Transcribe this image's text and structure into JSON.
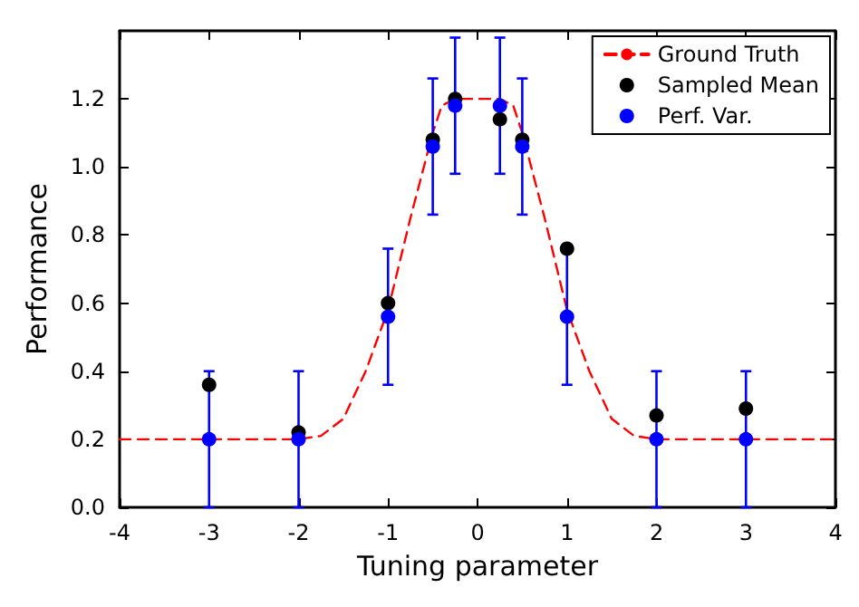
{
  "chart_data": {
    "type": "scatter",
    "xlabel": "Tuning parameter",
    "ylabel": "Performance",
    "xlim": [
      -4,
      4
    ],
    "xticks": [
      -4,
      -3,
      -2,
      -1,
      0,
      1,
      2,
      3,
      4
    ],
    "ylim": [
      0,
      1.4
    ],
    "yticks": [
      {
        "value": 0,
        "label": "0.0"
      },
      0.2,
      0.4,
      0.6,
      0.8,
      {
        "value": 1,
        "label": "1.0"
      },
      1.2
    ],
    "grid": false,
    "legend": "top right",
    "series": [
      {
        "name": "Ground Truth",
        "type": "line",
        "color": "#ff0000",
        "line_style": "dashed",
        "marker": "none",
        "x": [
          -4,
          -2,
          -1.75,
          -1.5,
          -1.25,
          -1,
          -0.75,
          -0.5,
          -0.4,
          -0.25,
          0,
          0.25,
          0.4,
          0.5,
          0.75,
          1,
          1.25,
          1.5,
          1.75,
          2,
          4
        ],
        "values": [
          0.2,
          0.2,
          0.21,
          0.26,
          0.4,
          0.58,
          0.85,
          1.1,
          1.18,
          1.2,
          1.2,
          1.2,
          1.18,
          1.1,
          0.85,
          0.58,
          0.4,
          0.26,
          0.21,
          0.2,
          0.2
        ]
      },
      {
        "name": "Sampled Mean",
        "color": "#000000",
        "marker": "circle",
        "x": [
          -3,
          -2,
          -1,
          -0.5,
          -0.25,
          0.25,
          0.5,
          1,
          2,
          3
        ],
        "values": [
          0.36,
          0.22,
          0.6,
          1.08,
          1.2,
          1.14,
          1.08,
          0.76,
          0.27,
          0.29
        ]
      },
      {
        "name": "Perf. Var.",
        "color": "#0000ff",
        "marker": "circle",
        "x": [
          -3,
          -2,
          -1,
          -0.5,
          -0.25,
          0.25,
          0.5,
          1,
          2,
          3
        ],
        "values": [
          0.2,
          0.2,
          0.56,
          1.06,
          1.18,
          1.18,
          1.06,
          0.56,
          0.2,
          0.2
        ],
        "errors": [
          0.2,
          0.2,
          0.2,
          0.2,
          0.2,
          0.2,
          0.2,
          0.2,
          0.2,
          0.2
        ]
      }
    ]
  }
}
